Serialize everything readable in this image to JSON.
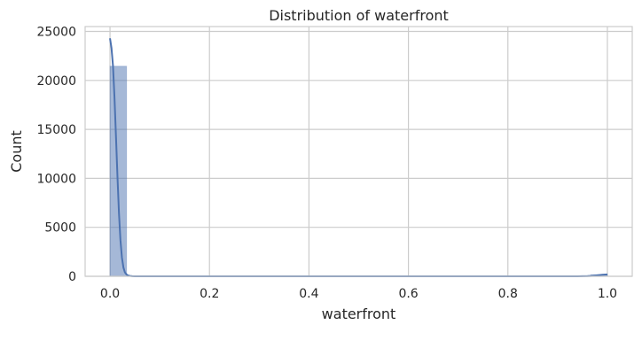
{
  "chart_data": {
    "type": "bar",
    "title": "Distribution of waterfront",
    "xlabel": "waterfront",
    "ylabel": "Count",
    "xlim": [
      -0.05,
      1.05
    ],
    "ylim": [
      0,
      25500
    ],
    "xticks": [
      0.0,
      0.2,
      0.4,
      0.6,
      0.8,
      1.0
    ],
    "xtick_labels": [
      "0.0",
      "0.2",
      "0.4",
      "0.6",
      "0.8",
      "1.0"
    ],
    "yticks": [
      0,
      5000,
      10000,
      15000,
      20000,
      25000
    ],
    "ytick_labels": [
      "0",
      "5000",
      "10000",
      "15000",
      "20000",
      "25000"
    ],
    "grid": true,
    "bins": [
      {
        "x0": 0.0,
        "x1": 0.0333,
        "count": 21450
      },
      {
        "x0": 0.9667,
        "x1": 1.0,
        "count": 163
      }
    ],
    "kde": {
      "x": [
        0.0,
        0.003,
        0.006,
        0.009,
        0.012,
        0.015,
        0.018,
        0.021,
        0.024,
        0.027,
        0.03,
        0.033,
        0.036,
        0.04,
        0.045,
        0.05,
        0.06,
        0.08,
        0.1,
        0.3,
        0.5,
        0.7,
        0.9,
        0.94,
        0.96,
        0.97,
        0.98,
        0.99,
        1.0
      ],
      "y": [
        24300,
        23300,
        21500,
        18300,
        14300,
        10200,
        6500,
        3700,
        1900,
        900,
        400,
        200,
        90,
        40,
        15,
        5,
        0,
        0,
        0,
        0,
        0,
        0,
        0,
        5,
        20,
        50,
        100,
        160,
        190
      ]
    },
    "colors": {
      "bar_fill": "#4c72b0",
      "kde_line": "#4c72b0",
      "grid": "#cccccc",
      "text": "#262626"
    }
  }
}
